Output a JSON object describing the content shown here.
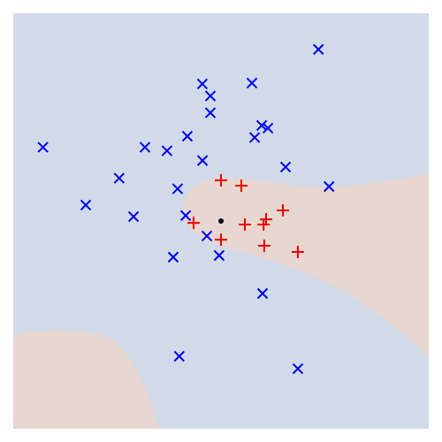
{
  "chart_data": {
    "type": "scatter",
    "title": "",
    "xlabel": "",
    "ylabel": "",
    "xlim": [
      -1,
      1
    ],
    "ylim": [
      -1,
      1
    ],
    "grid": false,
    "axes_visible": false,
    "legend": "none",
    "colors": {
      "region_negative": "#d1dae8",
      "region_positive": "#e7d7d0",
      "class_x": "#0000ee",
      "class_plus": "#ee0000",
      "center_point": "#000000"
    },
    "series": [
      {
        "marker": "x",
        "color": "#0000ee",
        "points": [
          [
            0.469,
            0.826
          ],
          [
            -0.09,
            0.66
          ],
          [
            -0.051,
            0.602
          ],
          [
            0.149,
            0.664
          ],
          [
            0.196,
            0.46
          ],
          [
            0.226,
            0.447
          ],
          [
            0.162,
            0.402
          ],
          [
            -0.162,
            0.408
          ],
          [
            -0.051,
            0.521
          ],
          [
            -0.857,
            0.355
          ],
          [
            -0.366,
            0.355
          ],
          [
            -0.26,
            0.338
          ],
          [
            -0.089,
            0.291
          ],
          [
            0.311,
            0.26
          ],
          [
            0.52,
            0.166
          ],
          [
            -0.49,
            0.206
          ],
          [
            -0.209,
            0.155
          ],
          [
            -0.651,
            0.077
          ],
          [
            -0.421,
            0.021
          ],
          [
            -0.17,
            0.026
          ],
          [
            -0.068,
            -0.072
          ],
          [
            -0.23,
            -0.174
          ],
          [
            -0.009,
            -0.166
          ],
          [
            0.2,
            -0.349
          ],
          [
            -0.201,
            -0.651
          ],
          [
            0.37,
            -0.711
          ]
        ]
      },
      {
        "marker": "+",
        "color": "#ee0000",
        "points": [
          [
            0.0,
            0.196
          ],
          [
            0.098,
            0.17
          ],
          [
            0.298,
            0.051
          ],
          [
            0.217,
            0.008
          ],
          [
            -0.132,
            -0.009
          ],
          [
            0.115,
            -0.017
          ],
          [
            0.205,
            -0.017
          ],
          [
            0.0,
            -0.09
          ],
          [
            0.208,
            -0.119
          ],
          [
            0.37,
            -0.149
          ]
        ]
      },
      {
        "marker": "dot",
        "color": "#000000",
        "points": [
          [
            0.0,
            0.0
          ]
        ]
      }
    ]
  }
}
